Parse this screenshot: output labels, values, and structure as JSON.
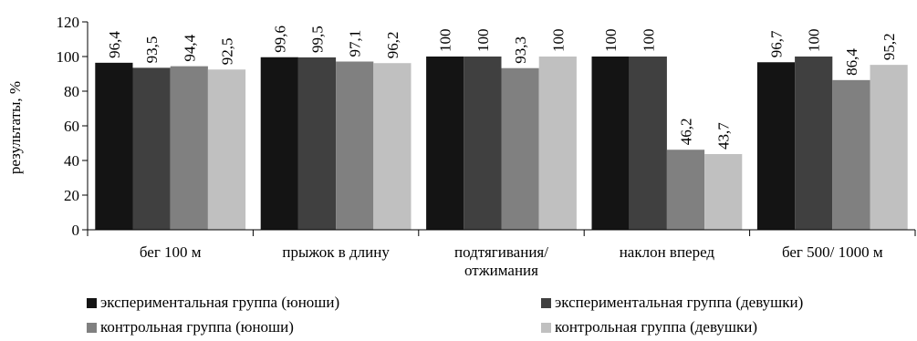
{
  "chart_data": {
    "type": "bar",
    "ylabel": "результаты, %",
    "xlabel": "",
    "ylim": [
      0,
      120
    ],
    "yticks": [
      0,
      20,
      40,
      60,
      80,
      100,
      120
    ],
    "categories": [
      [
        "бег 100 м"
      ],
      [
        "прыжок в длину"
      ],
      [
        "подтягивания/",
        "отжимания"
      ],
      [
        "наклон вперед"
      ],
      [
        "бег 500/ 1000 м"
      ]
    ],
    "series": [
      {
        "name": "экспериментальная группа (юноши)",
        "color": "#141414",
        "values": [
          96.4,
          99.6,
          100,
          100,
          96.7
        ],
        "labels": [
          "96,4",
          "99,6",
          "100",
          "100",
          "96,7"
        ]
      },
      {
        "name": "экспериментальная группа (девушки)",
        "color": "#404040",
        "values": [
          93.5,
          99.5,
          100,
          100,
          100
        ],
        "labels": [
          "93,5",
          "99,5",
          "100",
          "100",
          "100"
        ]
      },
      {
        "name": "контрольная группа (юноши)",
        "color": "#808080",
        "values": [
          94.4,
          97.1,
          93.3,
          46.2,
          86.4
        ],
        "labels": [
          "94,4",
          "97,1",
          "93,3",
          "46,2",
          "86,4"
        ]
      },
      {
        "name": "контрольная группа (девушки)",
        "color": "#c0c0c0",
        "values": [
          92.5,
          96.2,
          100,
          43.7,
          95.2
        ],
        "labels": [
          "92,5",
          "96,2",
          "100",
          "43,7",
          "95,2"
        ]
      }
    ],
    "legend_position": "bottom",
    "grid": false
  }
}
